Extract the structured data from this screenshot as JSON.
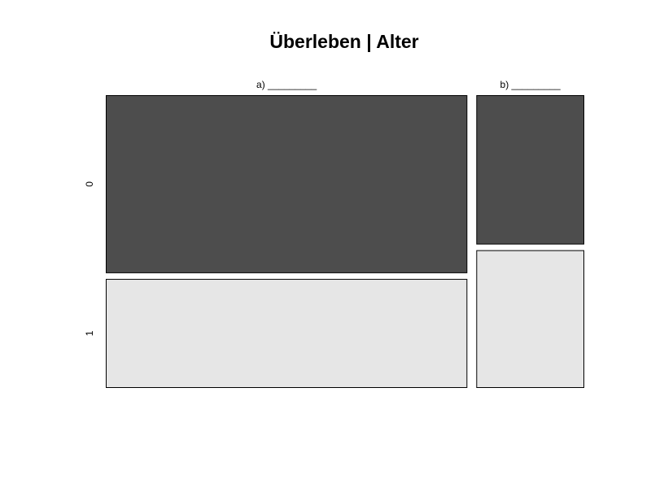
{
  "chart_data": {
    "type": "mosaic",
    "title": "Überleben | Alter",
    "column_labels": [
      "a) _________",
      "b) _________"
    ],
    "row_labels": [
      "0",
      "1"
    ],
    "column_widths": [
      0.77,
      0.23
    ],
    "conditional_proportions": [
      {
        "column": "a) _________",
        "0": 0.62,
        "1": 0.38
      },
      {
        "column": "b) _________",
        "0": 0.52,
        "1": 0.48
      }
    ],
    "colors": {
      "0": "#4d4d4d",
      "1": "#e6e6e6"
    }
  }
}
